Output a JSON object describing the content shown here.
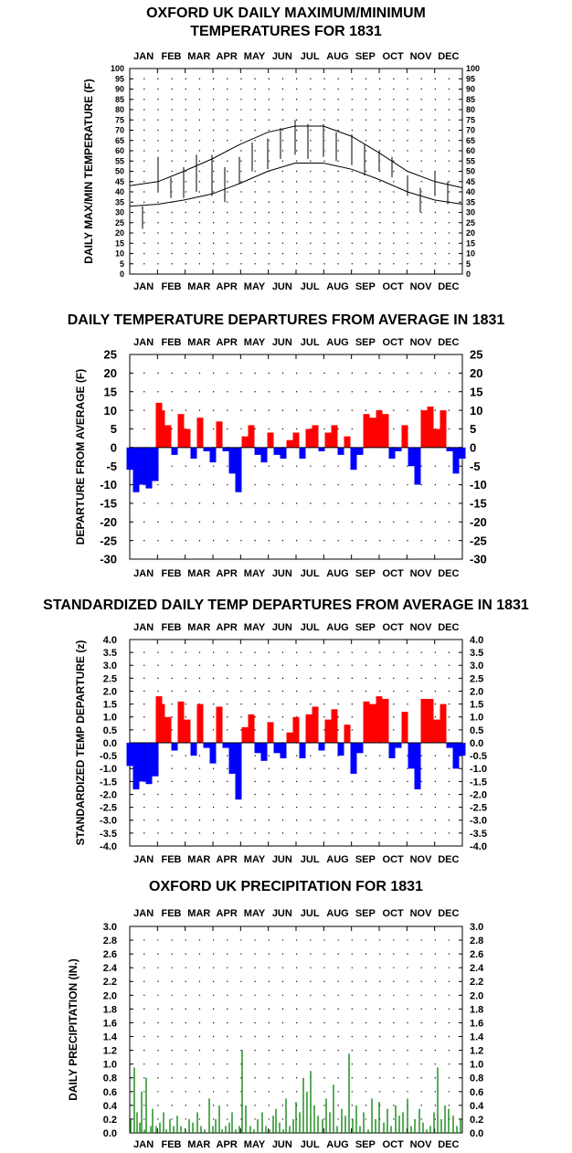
{
  "months": [
    "JAN",
    "FEB",
    "MAR",
    "APR",
    "MAY",
    "JUN",
    "JUL",
    "AUG",
    "SEP",
    "OCT",
    "NOV",
    "DEC"
  ],
  "colors": {
    "maxmin": "#808080",
    "normal": "#000000",
    "warm": "#ff0000",
    "cold": "#0000ff",
    "precip": "#008000"
  },
  "chart_data": [
    {
      "type": "line",
      "title_lines": [
        "OXFORD UK DAILY MAXIMUM/MINIMUM",
        "TEMPERATURES FOR 1831"
      ],
      "ylabel": "DAILY MAX/MIN TEMPERATURE (F)",
      "ylim": [
        0,
        100
      ],
      "yticks": [
        "0",
        "5",
        "10",
        "15",
        "20",
        "25",
        "30",
        "35",
        "40",
        "45",
        "50",
        "55",
        "60",
        "65",
        "70",
        "75",
        "80",
        "85",
        "90",
        "95",
        "100"
      ],
      "x_domain_days": [
        1,
        365
      ],
      "grid": true,
      "series": [
        {
          "role": "daily_max",
          "x": [
            1,
            15,
            32,
            46,
            60,
            74,
            91,
            105,
            121,
            135,
            152,
            166,
            182,
            196,
            213,
            227,
            244,
            258,
            274,
            288,
            305,
            319,
            335,
            349,
            365
          ],
          "y": [
            40,
            33,
            57,
            47,
            52,
            58,
            58,
            52,
            57,
            64,
            66,
            71,
            75,
            73,
            73,
            69,
            68,
            63,
            60,
            57,
            48,
            42,
            50,
            45,
            38
          ]
        },
        {
          "role": "daily_min",
          "x": [
            1,
            15,
            32,
            46,
            60,
            74,
            91,
            105,
            121,
            135,
            152,
            166,
            182,
            196,
            213,
            227,
            244,
            258,
            274,
            288,
            305,
            319,
            335,
            349,
            365
          ],
          "y": [
            28,
            22,
            40,
            37,
            37,
            40,
            38,
            35,
            44,
            50,
            51,
            56,
            58,
            56,
            57,
            55,
            53,
            48,
            50,
            47,
            38,
            30,
            38,
            34,
            30
          ]
        },
        {
          "role": "normal_max",
          "x": [
            1,
            32,
            60,
            91,
            121,
            152,
            182,
            213,
            244,
            274,
            305,
            335,
            365
          ],
          "y": [
            43,
            45,
            50,
            56,
            63,
            69,
            72,
            72,
            67,
            59,
            50,
            45,
            42
          ]
        },
        {
          "role": "normal_min",
          "x": [
            1,
            32,
            60,
            91,
            121,
            152,
            182,
            213,
            244,
            274,
            305,
            335,
            365
          ],
          "y": [
            33,
            34,
            36,
            39,
            44,
            50,
            54,
            54,
            51,
            46,
            40,
            36,
            34
          ]
        }
      ]
    },
    {
      "type": "bar",
      "title": "DAILY TEMPERATURE DEPARTURES FROM AVERAGE IN 1831",
      "ylabel": "DEPARTURE FROM AVERAGE (F)",
      "ylim": [
        -30,
        25
      ],
      "yticks": [
        "-30",
        "-25",
        "-20",
        "-15",
        "-10",
        "-5",
        "0",
        "5",
        "10",
        "15",
        "20",
        "25"
      ],
      "x_domain_days": [
        1,
        365
      ],
      "grid": true,
      "x": [
        1,
        8,
        15,
        22,
        29,
        33,
        36,
        43,
        50,
        57,
        64,
        71,
        78,
        85,
        92,
        99,
        106,
        113,
        120,
        127,
        134,
        141,
        148,
        155,
        162,
        169,
        176,
        183,
        190,
        197,
        204,
        211,
        218,
        225,
        232,
        239,
        246,
        253,
        260,
        267,
        274,
        281,
        288,
        295,
        302,
        309,
        316,
        323,
        330,
        337,
        344,
        351,
        358,
        365
      ],
      "values": [
        -6,
        -12,
        -10,
        -11,
        -9,
        12,
        10,
        6,
        -2,
        9,
        5,
        -3,
        8,
        -1,
        -4,
        7,
        -1,
        -7,
        -12,
        3,
        6,
        -2,
        -4,
        4,
        -2,
        -3,
        2,
        4,
        -3,
        5,
        6,
        -1,
        4,
        6,
        -2,
        3,
        -6,
        -2,
        9,
        8,
        10,
        9,
        -3,
        -1,
        6,
        -5,
        -10,
        10,
        11,
        5,
        10,
        -1,
        -7,
        -3
      ]
    },
    {
      "type": "bar",
      "title": "STANDARDIZED DAILY TEMP DEPARTURES FROM AVERAGE IN 1831",
      "ylabel": "STANDARDIZED TEMP DEPARTURE (z)",
      "ylim": [
        -4.0,
        4.0
      ],
      "yticks": [
        "-4.0",
        "-3.5",
        "-3.0",
        "-2.5",
        "-2.0",
        "-1.5",
        "-1.0",
        "-0.5",
        "0.0",
        "0.5",
        "1.0",
        "1.5",
        "2.0",
        "2.5",
        "3.0",
        "3.5",
        "4.0"
      ],
      "x_domain_days": [
        1,
        365
      ],
      "grid": true,
      "x": [
        1,
        8,
        15,
        22,
        29,
        33,
        36,
        43,
        50,
        57,
        64,
        71,
        78,
        85,
        92,
        99,
        106,
        113,
        120,
        127,
        134,
        141,
        148,
        155,
        162,
        169,
        176,
        183,
        190,
        197,
        204,
        211,
        218,
        225,
        232,
        239,
        246,
        253,
        260,
        267,
        274,
        281,
        288,
        295,
        302,
        309,
        316,
        323,
        330,
        337,
        344,
        351,
        358,
        365
      ],
      "values": [
        -0.9,
        -1.8,
        -1.5,
        -1.6,
        -1.3,
        1.8,
        1.5,
        1.0,
        -0.3,
        1.6,
        0.9,
        -0.5,
        1.5,
        -0.2,
        -0.8,
        1.4,
        -0.2,
        -1.2,
        -2.2,
        0.6,
        1.1,
        -0.4,
        -0.7,
        0.8,
        -0.4,
        -0.6,
        0.4,
        1.0,
        -0.6,
        1.1,
        1.4,
        -0.3,
        0.9,
        1.3,
        -0.5,
        0.7,
        -1.2,
        -0.4,
        1.6,
        1.5,
        1.8,
        1.7,
        -0.6,
        -0.2,
        1.2,
        -1.0,
        -1.8,
        1.7,
        1.7,
        0.9,
        1.5,
        -0.2,
        -1.0,
        -0.5
      ]
    },
    {
      "type": "bar",
      "title": "OXFORD UK PRECIPITATION FOR 1831",
      "ylabel": "DAILY PRECIPITATION (IN.)",
      "ylim": [
        0,
        3.0
      ],
      "yticks": [
        "0.0",
        "0.2",
        "0.4",
        "0.6",
        "0.8",
        "1.0",
        "1.2",
        "1.4",
        "1.6",
        "1.8",
        "2.0",
        "2.2",
        "2.4",
        "2.6",
        "2.8",
        "3.0"
      ],
      "x_domain_days": [
        1,
        365
      ],
      "grid": true,
      "x": [
        2,
        6,
        9,
        12,
        14,
        17,
        19,
        24,
        26,
        30,
        34,
        38,
        41,
        45,
        49,
        53,
        57,
        62,
        66,
        70,
        75,
        79,
        83,
        88,
        92,
        95,
        99,
        102,
        106,
        110,
        113,
        117,
        121,
        124,
        128,
        133,
        137,
        141,
        146,
        150,
        154,
        158,
        161,
        165,
        169,
        172,
        176,
        180,
        183,
        187,
        191,
        195,
        199,
        203,
        207,
        212,
        216,
        220,
        224,
        228,
        233,
        237,
        241,
        245,
        249,
        253,
        257,
        262,
        266,
        270,
        274,
        279,
        283,
        287,
        292,
        296,
        300,
        305,
        309,
        313,
        318,
        322,
        326,
        330,
        334,
        338,
        342,
        346,
        350,
        355,
        359,
        363
      ],
      "values": [
        0.2,
        0.95,
        0.3,
        0.15,
        0.6,
        0.05,
        0.8,
        0.1,
        0.35,
        0.1,
        0.15,
        0.3,
        0.05,
        0.2,
        0.1,
        0.25,
        0.1,
        0.05,
        0.2,
        0.15,
        0.3,
        0.1,
        0.05,
        0.5,
        0.1,
        0.2,
        0.4,
        0.05,
        0.1,
        0.15,
        0.3,
        0.05,
        0.1,
        1.2,
        0.4,
        0.1,
        0.05,
        0.2,
        0.3,
        0.1,
        0.05,
        0.25,
        0.35,
        0.15,
        0.05,
        0.5,
        0.1,
        0.2,
        0.45,
        0.3,
        0.8,
        0.6,
        0.9,
        0.4,
        0.25,
        0.2,
        0.5,
        0.3,
        0.7,
        0.1,
        0.35,
        0.25,
        1.15,
        0.2,
        0.4,
        0.1,
        0.3,
        0.05,
        0.5,
        0.2,
        0.45,
        0.15,
        0.35,
        0.1,
        0.4,
        0.25,
        0.3,
        0.5,
        0.1,
        0.2,
        0.35,
        0.15,
        0.05,
        0.1,
        0.3,
        0.95,
        0.2,
        0.4,
        0.35,
        0.25,
        0.1,
        0.2
      ]
    }
  ]
}
